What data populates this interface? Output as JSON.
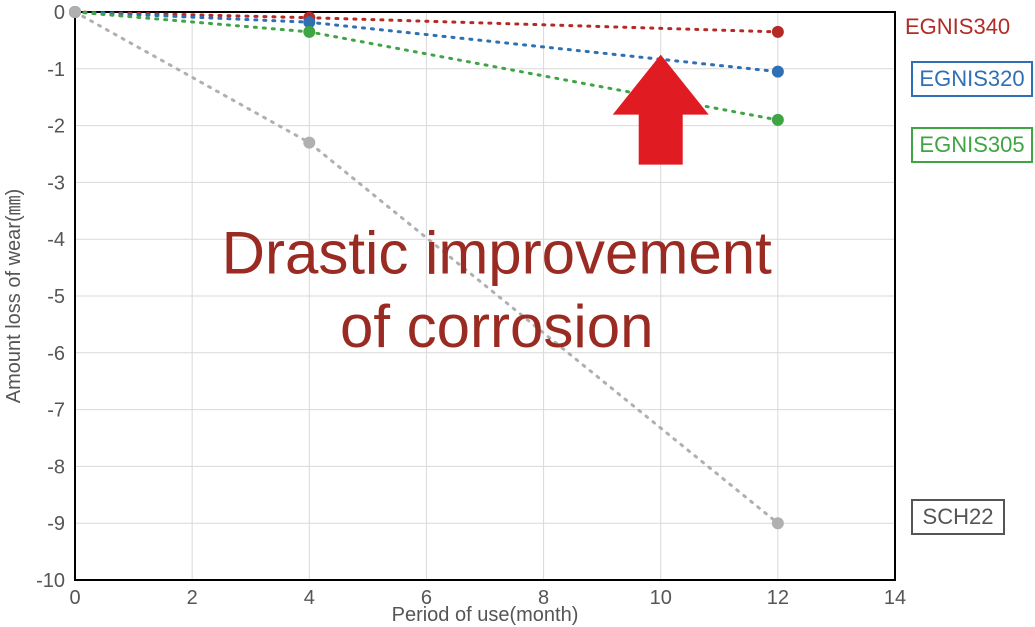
{
  "chart": {
    "type": "line",
    "background_color": "#ffffff",
    "plot_border_color": "#000000",
    "plot_border_width": 2,
    "grid_color": "#d9d9d9",
    "grid_width": 1,
    "x": {
      "label": "Period of use(month)",
      "min": 0,
      "max": 14,
      "tick_step": 2,
      "label_fontsize": 20,
      "tick_fontsize": 20,
      "tick_color": "#555555"
    },
    "y": {
      "label": "Amount loss of wear(㎜)",
      "min": -10,
      "max": 0,
      "tick_step": 1,
      "label_fontsize": 20,
      "tick_fontsize": 20,
      "tick_color": "#555555"
    },
    "line_style": "dotted",
    "line_width": 3,
    "marker_radius": 6,
    "series": [
      {
        "name": "EGNIS340",
        "color": "#b42a25",
        "points": [
          {
            "x": 0,
            "y": 0
          },
          {
            "x": 4,
            "y": -0.1
          },
          {
            "x": 12,
            "y": -0.35
          }
        ]
      },
      {
        "name": "EGNIS320",
        "color": "#2f6fb3",
        "points": [
          {
            "x": 0,
            "y": 0
          },
          {
            "x": 4,
            "y": -0.18
          },
          {
            "x": 12,
            "y": -1.05
          }
        ]
      },
      {
        "name": "EGNIS305",
        "color": "#3fa444",
        "points": [
          {
            "x": 0,
            "y": 0
          },
          {
            "x": 4,
            "y": -0.35
          },
          {
            "x": 12,
            "y": -1.9
          }
        ]
      },
      {
        "name": "SCH22",
        "color": "#b0b0b0",
        "points": [
          {
            "x": 0,
            "y": 0
          },
          {
            "x": 4,
            "y": -2.3
          },
          {
            "x": 12,
            "y": -9.0
          }
        ]
      }
    ],
    "series_label_boxes": {
      "EGNIS340": {
        "box_border": "#b42a25",
        "text_color": "#b42a25"
      },
      "EGNIS320": {
        "box_border": "#2f6fb3",
        "text_color": "#2f6fb3"
      },
      "EGNIS305": {
        "box_border": "#3fa444",
        "text_color": "#3fa444"
      },
      "SCH22": {
        "box_border": "#555555",
        "text_color": "#555555"
      }
    },
    "headline": {
      "line1": "Drastic improvement",
      "line2": "of corrosion",
      "color": "#9a2b23",
      "fontsize": 60,
      "font_weight": 500
    },
    "arrow": {
      "color": "#e11b22"
    }
  }
}
